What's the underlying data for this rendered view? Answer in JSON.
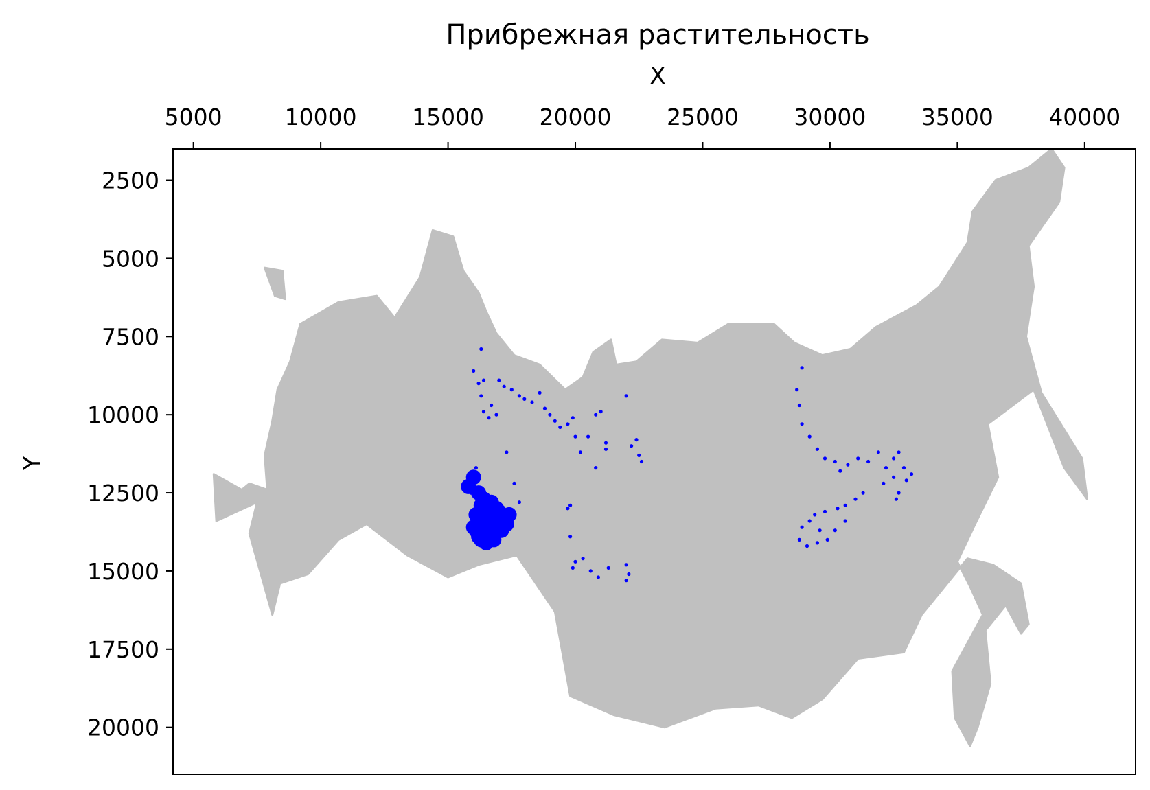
{
  "chart_data": {
    "type": "scatter",
    "title": "Прибрежная растительность",
    "xlabel": "X",
    "ylabel": "Y",
    "xlim": [
      4200,
      42000
    ],
    "ylim": [
      1500,
      21500
    ],
    "y_inverted": true,
    "x_axis_position": "top",
    "grid": false,
    "legend": "none",
    "x_ticks": [
      5000,
      10000,
      15000,
      20000,
      25000,
      30000,
      35000,
      40000
    ],
    "x_tick_labels": [
      "5000",
      "10000",
      "15000",
      "20000",
      "25000",
      "30000",
      "35000",
      "40000"
    ],
    "y_ticks": [
      2500,
      5000,
      7500,
      10000,
      12500,
      15000,
      17500,
      20000
    ],
    "y_tick_labels": [
      "2500",
      "5000",
      "7500",
      "10000",
      "12500",
      "15000",
      "17500",
      "20000"
    ],
    "colors": {
      "background_points": "#c0c0c0",
      "highlight_points": "#0000ff",
      "frame": "#000000"
    },
    "background_region": {
      "name": "land-mass",
      "outline": [
        [
          7500,
          12800
        ],
        [
          7200,
          13800
        ],
        [
          8100,
          16400
        ],
        [
          8400,
          15400
        ],
        [
          9500,
          15100
        ],
        [
          10700,
          14000
        ],
        [
          11800,
          13500
        ],
        [
          13400,
          14500
        ],
        [
          15000,
          15200
        ],
        [
          16200,
          14800
        ],
        [
          17700,
          14500
        ],
        [
          19200,
          16300
        ],
        [
          19800,
          19000
        ],
        [
          21500,
          19600
        ],
        [
          23500,
          20000
        ],
        [
          25500,
          19400
        ],
        [
          27200,
          19300
        ],
        [
          28500,
          19700
        ],
        [
          29700,
          19100
        ],
        [
          31100,
          17800
        ],
        [
          32900,
          17600
        ],
        [
          33600,
          16400
        ],
        [
          35400,
          14600
        ],
        [
          36400,
          14800
        ],
        [
          37500,
          15400
        ],
        [
          37800,
          16700
        ],
        [
          37500,
          17000
        ],
        [
          36900,
          16100
        ],
        [
          36100,
          16900
        ],
        [
          36300,
          18600
        ],
        [
          35800,
          20000
        ],
        [
          35500,
          20600
        ],
        [
          34900,
          19700
        ],
        [
          34800,
          18200
        ],
        [
          36000,
          16400
        ],
        [
          35500,
          15500
        ],
        [
          35000,
          14700
        ],
        [
          35700,
          13500
        ],
        [
          36600,
          12000
        ],
        [
          36200,
          10300
        ],
        [
          38000,
          9200
        ],
        [
          39200,
          11700
        ],
        [
          40100,
          12700
        ],
        [
          39900,
          11400
        ],
        [
          38300,
          9300
        ],
        [
          37700,
          7500
        ],
        [
          38000,
          5900
        ],
        [
          37800,
          4600
        ],
        [
          39000,
          3200
        ],
        [
          39200,
          2100
        ],
        [
          38700,
          1500
        ],
        [
          37800,
          2100
        ],
        [
          36500,
          2500
        ],
        [
          35600,
          3500
        ],
        [
          35400,
          4500
        ],
        [
          34300,
          5900
        ],
        [
          33400,
          6500
        ],
        [
          31800,
          7200
        ],
        [
          30800,
          7900
        ],
        [
          29700,
          8100
        ],
        [
          28600,
          7700
        ],
        [
          27800,
          7100
        ],
        [
          26000,
          7100
        ],
        [
          24800,
          7700
        ],
        [
          23400,
          7600
        ],
        [
          22400,
          8300
        ],
        [
          21600,
          8400
        ],
        [
          21400,
          7600
        ],
        [
          20700,
          8000
        ],
        [
          20300,
          8800
        ],
        [
          19600,
          9200
        ],
        [
          18600,
          8400
        ],
        [
          17600,
          8100
        ],
        [
          16900,
          7400
        ],
        [
          16500,
          6700
        ],
        [
          16200,
          6100
        ],
        [
          15600,
          5400
        ],
        [
          15200,
          4300
        ],
        [
          14400,
          4100
        ],
        [
          13900,
          5600
        ],
        [
          12900,
          6900
        ],
        [
          12200,
          6200
        ],
        [
          10700,
          6400
        ],
        [
          9200,
          7100
        ],
        [
          8800,
          8300
        ],
        [
          8300,
          9200
        ],
        [
          8100,
          10200
        ],
        [
          7800,
          11300
        ],
        [
          7900,
          12400
        ],
        [
          7200,
          12200
        ],
        [
          6900,
          12400
        ],
        [
          5800,
          11900
        ],
        [
          5900,
          13400
        ],
        [
          7500,
          12800
        ]
      ],
      "island_outline": [
        [
          7800,
          5300
        ],
        [
          8500,
          5400
        ],
        [
          8600,
          6300
        ],
        [
          8200,
          6200
        ],
        [
          7800,
          5300
        ]
      ]
    },
    "series": [
      {
        "marker": "dot",
        "points": [
          [
            16000,
            8600
          ],
          [
            16300,
            7900
          ],
          [
            16200,
            9000
          ],
          [
            16400,
            8900
          ],
          [
            16300,
            9400
          ],
          [
            16700,
            9700
          ],
          [
            17000,
            8900
          ],
          [
            17200,
            9100
          ],
          [
            17500,
            9200
          ],
          [
            17800,
            9400
          ],
          [
            18000,
            9500
          ],
          [
            18300,
            9600
          ],
          [
            18600,
            9300
          ],
          [
            16900,
            10000
          ],
          [
            16600,
            10100
          ],
          [
            16400,
            9900
          ],
          [
            17300,
            11200
          ],
          [
            19000,
            10000
          ],
          [
            19200,
            10200
          ],
          [
            19400,
            10400
          ],
          [
            19700,
            10300
          ],
          [
            18800,
            9800
          ],
          [
            19900,
            10100
          ],
          [
            20500,
            10700
          ],
          [
            20800,
            10000
          ],
          [
            21000,
            9900
          ],
          [
            21200,
            10900
          ],
          [
            20800,
            11700
          ],
          [
            21200,
            11100
          ],
          [
            22000,
            9400
          ],
          [
            22400,
            10800
          ],
          [
            22200,
            11000
          ],
          [
            22500,
            11300
          ],
          [
            22600,
            11500
          ],
          [
            20200,
            11200
          ],
          [
            20000,
            10700
          ],
          [
            17600,
            12200
          ],
          [
            17800,
            12800
          ],
          [
            16100,
            11700
          ],
          [
            15900,
            12500
          ],
          [
            19800,
            12900
          ],
          [
            19700,
            13000
          ],
          [
            19800,
            13900
          ],
          [
            20000,
            14700
          ],
          [
            20300,
            14600
          ],
          [
            20600,
            15000
          ],
          [
            20900,
            15200
          ],
          [
            21300,
            14900
          ],
          [
            22000,
            14800
          ],
          [
            22100,
            15100
          ],
          [
            22000,
            15300
          ],
          [
            19900,
            14900
          ],
          [
            28900,
            8500
          ],
          [
            28700,
            9200
          ],
          [
            28800,
            9700
          ],
          [
            28900,
            10300
          ],
          [
            29200,
            10700
          ],
          [
            29500,
            11100
          ],
          [
            29800,
            11400
          ],
          [
            30200,
            11500
          ],
          [
            30400,
            11800
          ],
          [
            30700,
            11600
          ],
          [
            31100,
            11400
          ],
          [
            31500,
            11500
          ],
          [
            31900,
            11200
          ],
          [
            32200,
            11700
          ],
          [
            32500,
            11400
          ],
          [
            32700,
            11200
          ],
          [
            32900,
            11700
          ],
          [
            32500,
            12000
          ],
          [
            33000,
            12100
          ],
          [
            33200,
            11900
          ],
          [
            32700,
            12500
          ],
          [
            32600,
            12700
          ],
          [
            32100,
            12200
          ],
          [
            31300,
            12500
          ],
          [
            31000,
            12700
          ],
          [
            30600,
            12900
          ],
          [
            30300,
            13000
          ],
          [
            29800,
            13100
          ],
          [
            29400,
            13200
          ],
          [
            29200,
            13400
          ],
          [
            28900,
            13600
          ],
          [
            28800,
            14000
          ],
          [
            29100,
            14200
          ],
          [
            29500,
            14100
          ],
          [
            29900,
            14000
          ],
          [
            30200,
            13700
          ],
          [
            30600,
            13400
          ],
          [
            29600,
            13700
          ]
        ]
      },
      {
        "marker": "dense-cluster",
        "points": [
          [
            15800,
            12300
          ],
          [
            16000,
            12000
          ],
          [
            16200,
            12500
          ],
          [
            16300,
            12900
          ],
          [
            16100,
            13200
          ],
          [
            16400,
            13500
          ],
          [
            16700,
            13000
          ],
          [
            16900,
            13400
          ],
          [
            16600,
            13800
          ],
          [
            16200,
            13900
          ],
          [
            16000,
            13600
          ],
          [
            16500,
            14100
          ],
          [
            16800,
            14000
          ],
          [
            17100,
            13700
          ],
          [
            17000,
            13100
          ],
          [
            17300,
            13500
          ],
          [
            17400,
            13200
          ],
          [
            16900,
            13000
          ],
          [
            16400,
            12700
          ],
          [
            16200,
            13300
          ],
          [
            16600,
            13300
          ],
          [
            16800,
            13600
          ],
          [
            16100,
            13700
          ],
          [
            16300,
            14000
          ],
          [
            16700,
            12800
          ]
        ]
      }
    ]
  }
}
